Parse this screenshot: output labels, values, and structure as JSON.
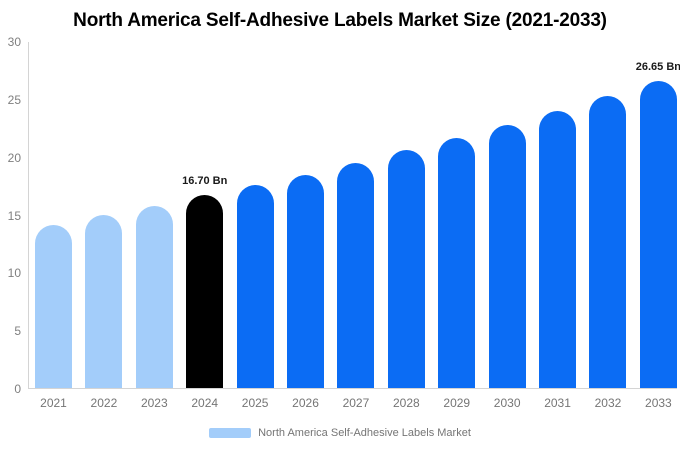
{
  "title": "North America Self-Adhesive Labels Market Size (2021-2033)",
  "colors": {
    "blue": "#0b6cf4",
    "light_blue": "#a3cdfa",
    "black_bar": "#000000",
    "axis_line": "#d4d4d4",
    "tick_text": "#7f7f7f",
    "label_text": "#757575",
    "title_text": "#000000"
  },
  "chart_data": {
    "type": "bar",
    "title": "North America Self-Adhesive Labels Market Size (2021-2033)",
    "categories": [
      "2021",
      "2022",
      "2023",
      "2024",
      "2025",
      "2026",
      "2027",
      "2028",
      "2029",
      "2030",
      "2031",
      "2032",
      "2033"
    ],
    "values": [
      14.1,
      15.0,
      15.8,
      16.7,
      17.6,
      18.5,
      19.5,
      20.6,
      21.7,
      22.8,
      24.0,
      25.3,
      26.65
    ],
    "unit": "Bn",
    "bar_colors": [
      "#a3cdfa",
      "#a3cdfa",
      "#a3cdfa",
      "#000000",
      "#0b6cf4",
      "#0b6cf4",
      "#0b6cf4",
      "#0b6cf4",
      "#0b6cf4",
      "#0b6cf4",
      "#0b6cf4",
      "#0b6cf4",
      "#0b6cf4"
    ],
    "data_labels": [
      {
        "category": "2024",
        "text": "16.70 Bn"
      },
      {
        "category": "2033",
        "text": "26.65 Bn"
      }
    ],
    "ylim": [
      0,
      30
    ],
    "yticks": [
      0,
      5,
      10,
      15,
      20,
      25,
      30
    ],
    "grid": false,
    "xlabel": "",
    "ylabel": "",
    "legend": {
      "position": "bottom",
      "items": [
        {
          "label": "North America Self-Adhesive Labels Market",
          "color": "#a3cdfa"
        }
      ]
    }
  }
}
